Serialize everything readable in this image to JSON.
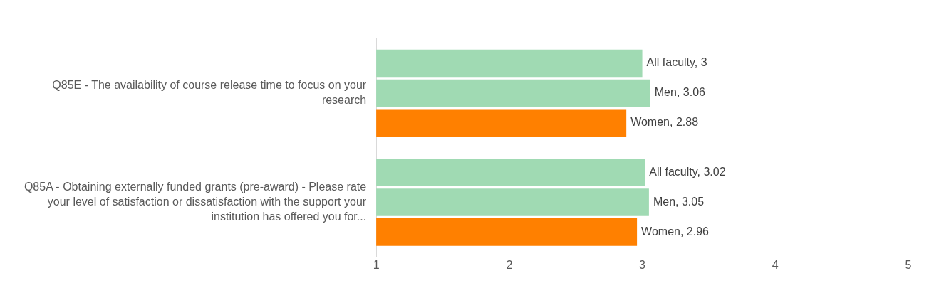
{
  "chart_data": {
    "type": "bar",
    "orientation": "horizontal",
    "categories": [
      "Q85E - The availability of course release time to focus on your research",
      "Q85A - Obtaining externally funded grants (pre-award) - Please rate your level of satisfaction or dissatisfaction with the support your institution has offered you for..."
    ],
    "series": [
      {
        "color": "#a0dab3",
        "values": [
          3,
          3.02
        ],
        "value_labels": [
          "All faculty, 3",
          "All faculty, 3.02"
        ]
      },
      {
        "color": "#a0dab3",
        "values": [
          3.06,
          3.05
        ],
        "value_labels": [
          "Men, 3.06",
          "Men, 3.05"
        ]
      },
      {
        "color": "#ff8000",
        "values": [
          2.88,
          2.96
        ],
        "value_labels": [
          "Women, 2.88",
          "Women, 2.96"
        ]
      }
    ],
    "xlim": [
      1,
      5
    ],
    "xticks": [
      1,
      2,
      3,
      4,
      5
    ],
    "grid": false,
    "legend": false
  }
}
